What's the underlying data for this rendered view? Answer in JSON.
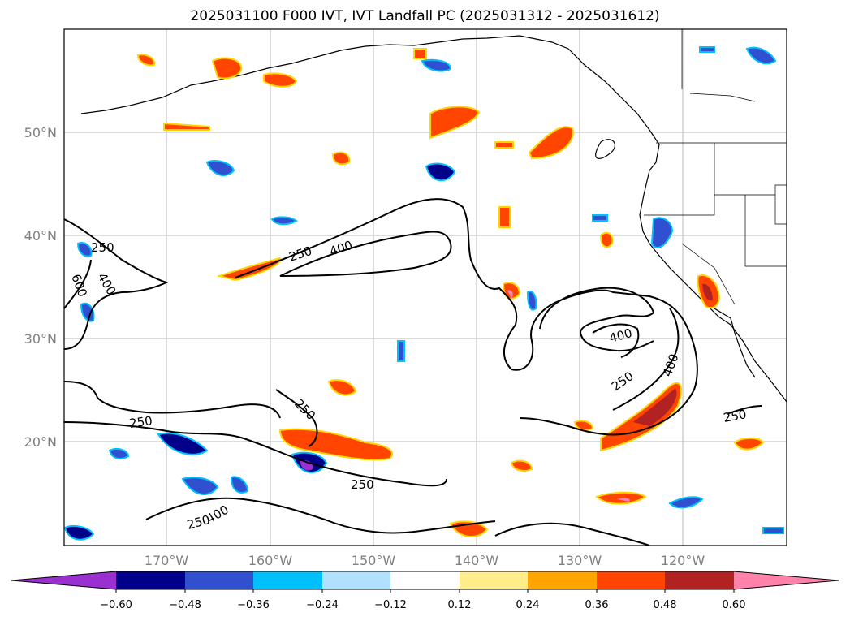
{
  "title": "2025031100 F000 IVT, IVT Landfall PC (2025031312 - 2025031612)",
  "map": {
    "lat_labels": [
      "50°N",
      "40°N",
      "30°N",
      "20°N"
    ],
    "lon_labels": [
      "170°W",
      "160°W",
      "150°W",
      "140°W",
      "130°W",
      "120°W"
    ],
    "contour_labels": [
      "250",
      "400",
      "600",
      "250",
      "400",
      "250",
      "400",
      "250",
      "400",
      "250",
      "250",
      "250",
      "400",
      "250"
    ]
  },
  "colorbar": {
    "tick_labels": [
      "−0.60",
      "−0.48",
      "−0.36",
      "−0.24",
      "−0.12",
      "0.12",
      "0.24",
      "0.36",
      "0.48",
      "0.60"
    ],
    "colors": [
      "#9b30d0",
      "#00008b",
      "#3050d0",
      "#00bfff",
      "#b0e2ff",
      "#ffffff",
      "#ffec8b",
      "#ffa500",
      "#ff4500",
      "#b22222",
      "#ff82ab"
    ]
  }
}
